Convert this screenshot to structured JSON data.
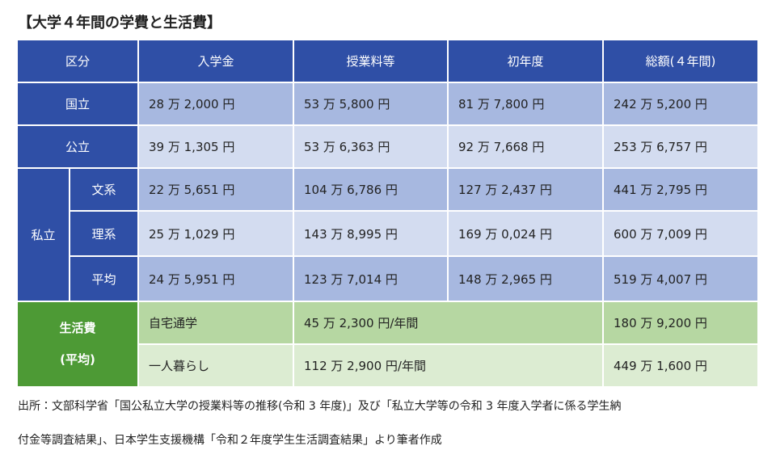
{
  "title": "【大学４年間の学費と生活費】",
  "table": {
    "headers": [
      "区分",
      "入学金",
      "授業料等",
      "初年度",
      "総額(４年間)"
    ],
    "national": {
      "label": "国立",
      "values": [
        "28 万 2,000 円",
        "53 万 5,800 円",
        "81 万 7,800 円",
        "242 万 5,200 円"
      ]
    },
    "public": {
      "label": "公立",
      "values": [
        "39 万 1,305 円",
        "53 万 6,363 円",
        "92 万 7,668 円",
        "253 万 6,757 円"
      ]
    },
    "private": {
      "label": "私立",
      "rows": [
        {
          "label": "文系",
          "values": [
            "22 万 5,651 円",
            "104 万 6,786 円",
            "127 万 2,437 円",
            "441 万 2,795 円"
          ]
        },
        {
          "label": "理系",
          "values": [
            "25 万 1,029 円",
            "143 万 8,995 円",
            "169 万 0,024 円",
            "600 万 7,009 円"
          ]
        },
        {
          "label": "平均",
          "values": [
            "24 万 5,951 円",
            "123 万 7,014 円",
            "148 万 2,965 円",
            "519 万 4,007 円"
          ]
        }
      ]
    },
    "living": {
      "label": "生活費",
      "sublabel": "(平均)",
      "rows": [
        {
          "label": "自宅通学",
          "annual": "45 万 2,300 円/年間",
          "total": "180 万 9,200 円"
        },
        {
          "label": "一人暮らし",
          "annual": "112 万 2,900 円/年間",
          "total": "449 万 1,600 円"
        }
      ]
    }
  },
  "source": [
    "出所：文部科学省「国公私立大学の授業料等の推移(令和 3 年度)」及び「私立大学等の令和 3 年度入学者に係る学生納",
    "付金等調査結果」、日本学生支援機構「令和２年度学生生活調査結果」より筆者作成"
  ]
}
